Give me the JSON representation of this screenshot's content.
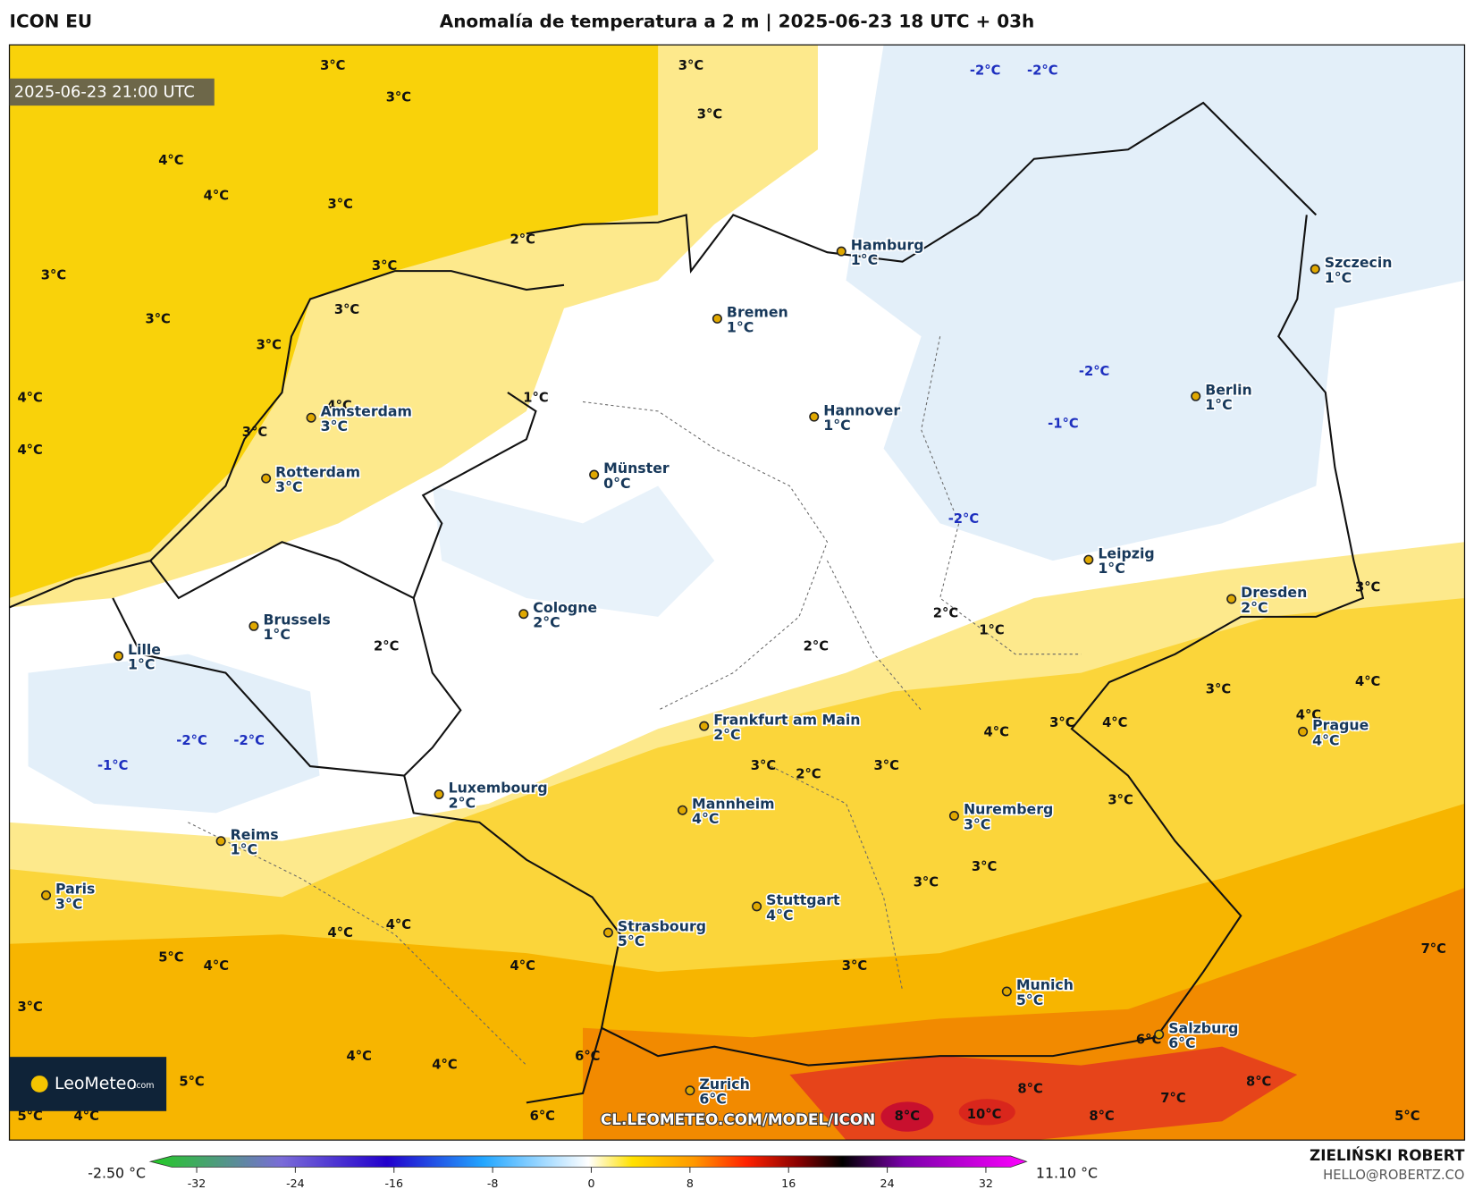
{
  "header": {
    "model": "ICON EU",
    "title": "Anomalía de temperatura a 2 m | 2025-06-23 18 UTC + 03h"
  },
  "timestamp": "2025-06-23 21:00 UTC",
  "cities": [
    {
      "name": "Hamburg",
      "temp": "1°C"
    },
    {
      "name": "Szczecin",
      "temp": "1°C"
    },
    {
      "name": "Bremen",
      "temp": "1°C"
    },
    {
      "name": "Berlin",
      "temp": "1°C"
    },
    {
      "name": "Hannover",
      "temp": "1°C"
    },
    {
      "name": "Amsterdam",
      "temp": "3°C"
    },
    {
      "name": "Rotterdam",
      "temp": "3°C"
    },
    {
      "name": "Münster",
      "temp": "0°C"
    },
    {
      "name": "Leipzig",
      "temp": "1°C"
    },
    {
      "name": "Dresden",
      "temp": "2°C"
    },
    {
      "name": "Cologne",
      "temp": "2°C"
    },
    {
      "name": "Brussels",
      "temp": "1°C"
    },
    {
      "name": "Lille",
      "temp": "1°C"
    },
    {
      "name": "Frankfurt am Main",
      "temp": "2°C"
    },
    {
      "name": "Prague",
      "temp": "4°C"
    },
    {
      "name": "Luxembourg",
      "temp": "2°C"
    },
    {
      "name": "Mannheim",
      "temp": "4°C"
    },
    {
      "name": "Nuremberg",
      "temp": "3°C"
    },
    {
      "name": "Reims",
      "temp": "1°C"
    },
    {
      "name": "Paris",
      "temp": "3°C"
    },
    {
      "name": "Stuttgart",
      "temp": "4°C"
    },
    {
      "name": "Strasbourg",
      "temp": "5°C"
    },
    {
      "name": "Munich",
      "temp": "5°C"
    },
    {
      "name": "Salzburg",
      "temp": "6°C"
    },
    {
      "name": "Zurich",
      "temp": "6°C"
    }
  ],
  "contour_labels": [
    "3°C",
    "3°C",
    "4°C",
    "4°C",
    "3°C",
    "3°C",
    "3°C",
    "3°C",
    "3°C",
    "3°C",
    "2°C",
    "3°C",
    "3°C",
    "-2°C",
    "-2°C",
    "4°C",
    "4°C",
    "3°C",
    "4°C",
    "1°C",
    "-2°C",
    "-1°C",
    "-2°C",
    "2°C",
    "2°C",
    "1°C",
    "2°C",
    "3°C",
    "3°C",
    "4°C",
    "-2°C",
    "-2°C",
    "-1°C",
    "4°C",
    "3°C",
    "4°C",
    "4°C",
    "3°C",
    "2°C",
    "3°C",
    "3°C",
    "3°C",
    "3°C",
    "4°C",
    "4°C",
    "5°C",
    "4°C",
    "4°C",
    "3°C",
    "7°C",
    "3°C",
    "4°C",
    "4°C",
    "6°C",
    "6°C",
    "5°C",
    "8°C",
    "8°C",
    "7°C",
    "5°C",
    "4°C",
    "6°C",
    "8°C",
    "10°C",
    "8°C",
    "5°C"
  ],
  "watermark": "CL.LEOMETEO.COM/MODEL/ICON",
  "logo": {
    "brand": "LeoMeteo",
    "suffix": ".com"
  },
  "colorbar": {
    "min_label": "-2.50 °C",
    "max_label": "11.10 °C",
    "lim": [
      -34,
      34
    ],
    "ticks": [
      -32,
      -24,
      -16,
      -8,
      0,
      8,
      16,
      24,
      32
    ]
  },
  "credits": {
    "author": "ZIELIŃSKI ROBERT",
    "email": "HELLO@ROBERTZ.CO"
  }
}
